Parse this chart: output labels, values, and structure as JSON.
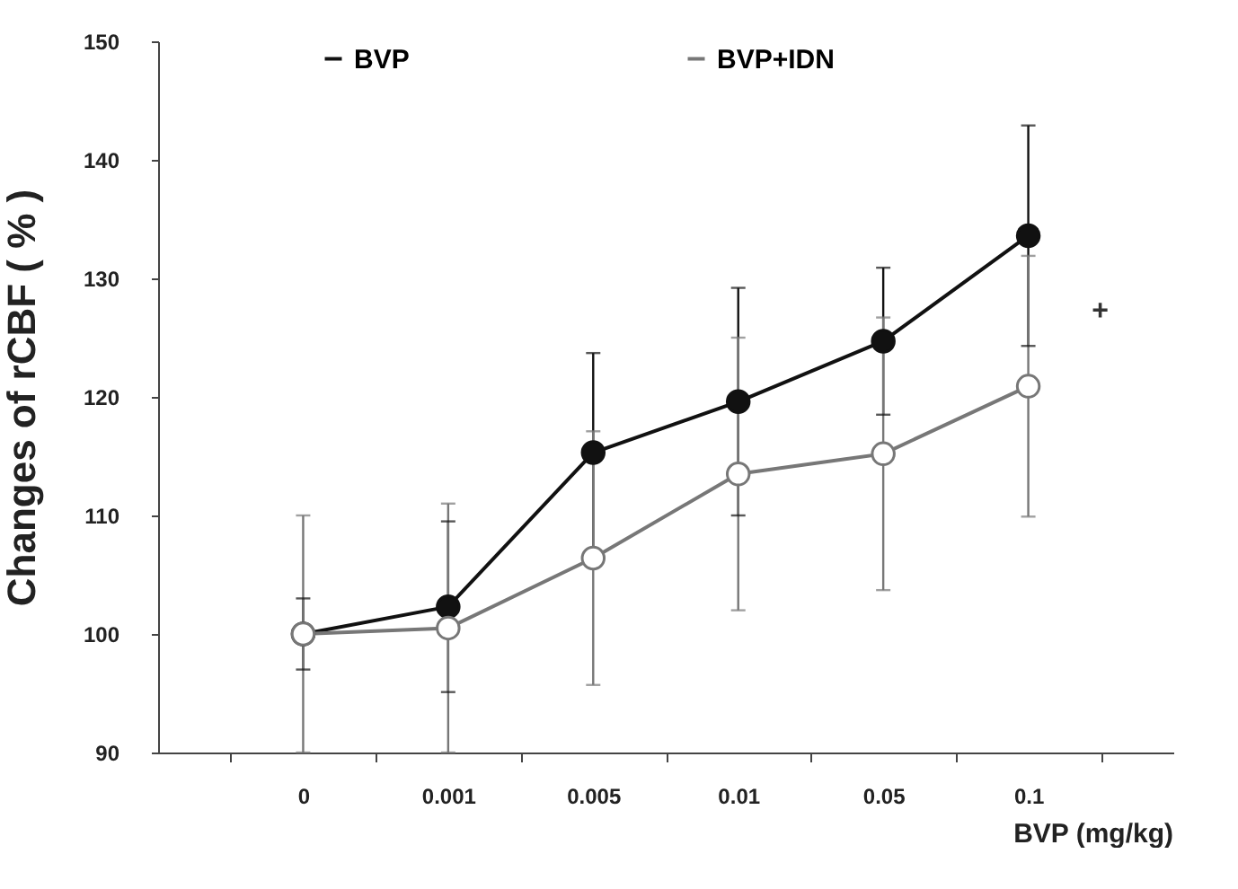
{
  "chart_data": {
    "type": "line",
    "xlabel": "BVP (mg/kg)",
    "ylabel": "Changes of rCBF ( % )",
    "categories": [
      "0",
      "0.001",
      "0.005",
      "0.01",
      "0.05",
      "0.1"
    ],
    "series": [
      {
        "name": "BVP",
        "color": "#111111",
        "values": [
          100,
          102.3,
          115.3,
          119.6,
          124.7,
          133.6
        ],
        "errors": [
          3,
          7.2,
          8.4,
          9.6,
          6.2,
          9.3
        ]
      },
      {
        "name": "BVP+IDN",
        "color": "#777777",
        "values": [
          100,
          100.5,
          106.4,
          113.5,
          115.2,
          120.9
        ],
        "errors": [
          10,
          10.5,
          10.7,
          11.5,
          11.5,
          11
        ]
      }
    ],
    "ylim": [
      90,
      150
    ],
    "yticks": [
      90,
      100,
      110,
      120,
      130,
      140,
      150
    ],
    "grid": false,
    "legend": "top",
    "marker": "circle",
    "line_style": "solid",
    "annotations": [
      {
        "text": "+",
        "x": "0.1",
        "y": 127.3
      }
    ]
  }
}
